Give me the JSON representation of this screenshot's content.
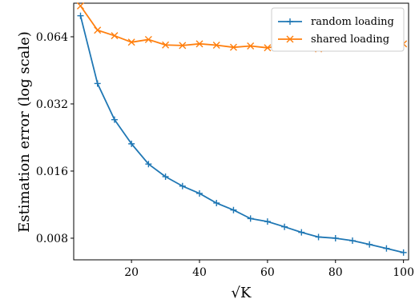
{
  "chart_data": {
    "type": "line",
    "xlabel": "√K",
    "ylabel": "Estimation error (log scale)",
    "xlim": [
      3,
      101.5
    ],
    "ylim": [
      0.0064,
      0.0905
    ],
    "yscale": "log",
    "grid": false,
    "legend_position": "top-right",
    "x_ticks": [
      20,
      40,
      60,
      80,
      100
    ],
    "x_tick_labels": [
      "20",
      "40",
      "60",
      "80",
      "100"
    ],
    "y_ticks": [
      0.008,
      0.016,
      0.032,
      0.064
    ],
    "y_tick_labels": [
      "0.008",
      "0.016",
      "0.032",
      "0.064"
    ],
    "x": [
      5,
      10,
      15,
      20,
      25,
      30,
      35,
      40,
      45,
      50,
      55,
      60,
      65,
      70,
      75,
      80,
      85,
      90,
      95,
      100
    ],
    "series": [
      {
        "name": "random loading",
        "color": "#1f77b4",
        "marker": "plus",
        "values": [
          0.0795,
          0.0395,
          0.0272,
          0.0212,
          0.0172,
          0.0151,
          0.0137,
          0.0127,
          0.0115,
          0.0107,
          0.0098,
          0.0095,
          0.009,
          0.0085,
          0.0081,
          0.008,
          0.0078,
          0.0075,
          0.0072,
          0.0069
        ]
      },
      {
        "name": "shared loading",
        "color": "#ff7f0e",
        "marker": "x",
        "values": [
          0.088,
          0.0685,
          0.0647,
          0.0605,
          0.0622,
          0.0588,
          0.0585,
          0.0595,
          0.0587,
          0.0574,
          0.0582,
          0.0571,
          0.0588,
          0.0593,
          0.0565,
          0.0585,
          0.058,
          0.058,
          0.0605,
          0.0595
        ]
      }
    ]
  }
}
